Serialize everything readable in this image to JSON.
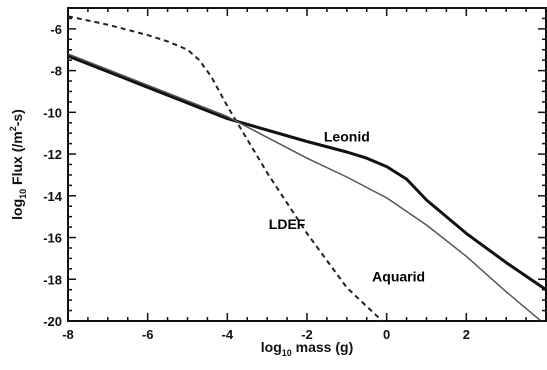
{
  "chart_data": {
    "type": "line",
    "xlabel_parts": {
      "prefix": "log",
      "sub": "10",
      "suffix": " mass (g)"
    },
    "ylabel_parts": {
      "prefix": "log",
      "sub": "10",
      "middle": " Flux (/m",
      "sup": "2",
      "suffix": "-s)"
    },
    "xlim": [
      -8,
      4
    ],
    "ylim": [
      -20,
      -5
    ],
    "xticks": [
      -8,
      -6,
      -4,
      -2,
      0,
      2
    ],
    "yticks": [
      -20,
      -18,
      -16,
      -14,
      -12,
      -10,
      -8,
      -6
    ],
    "xtick_labels": [
      "-8",
      "-6",
      "-4",
      "-2",
      "0",
      "2"
    ],
    "ytick_labels": [
      "-20",
      "-18",
      "-16",
      "-14",
      "-12",
      "-10",
      "-8",
      "-6"
    ],
    "grid": false,
    "series": [
      {
        "name": "LDEF",
        "style": "dashed",
        "color": "#222222",
        "x": [
          -8,
          -7,
          -6,
          -5.5,
          -5,
          -4.7,
          -4.4,
          -4,
          -3,
          -2,
          -1,
          0
        ],
        "y": [
          -5.4,
          -5.8,
          -6.3,
          -6.6,
          -7.0,
          -7.5,
          -8.3,
          -9.7,
          -12.9,
          -15.8,
          -18.4,
          -20.2
        ],
        "label_at": {
          "x": -2.5,
          "y": -15.6
        }
      },
      {
        "name": "Leonid",
        "style": "solid-thick",
        "color": "#111111",
        "x": [
          -8,
          -6,
          -4,
          -2,
          -1,
          -0.5,
          0,
          0.5,
          1,
          2,
          3,
          4
        ],
        "y": [
          -7.3,
          -8.8,
          -10.3,
          -11.4,
          -11.9,
          -12.2,
          -12.6,
          -13.2,
          -14.2,
          -15.8,
          -17.2,
          -18.5
        ],
        "label_at": {
          "x": -1.0,
          "y": -11.4
        }
      },
      {
        "name": "Aquarid",
        "style": "solid-thin",
        "color": "#555555",
        "x": [
          -8,
          -6,
          -4,
          -2,
          -1,
          0,
          1,
          2,
          3,
          4
        ],
        "y": [
          -7.2,
          -8.7,
          -10.2,
          -12.2,
          -13.1,
          -14.1,
          -15.4,
          -16.9,
          -18.6,
          -20.2
        ],
        "label_at": {
          "x": 0.3,
          "y": -18.1
        }
      }
    ]
  }
}
